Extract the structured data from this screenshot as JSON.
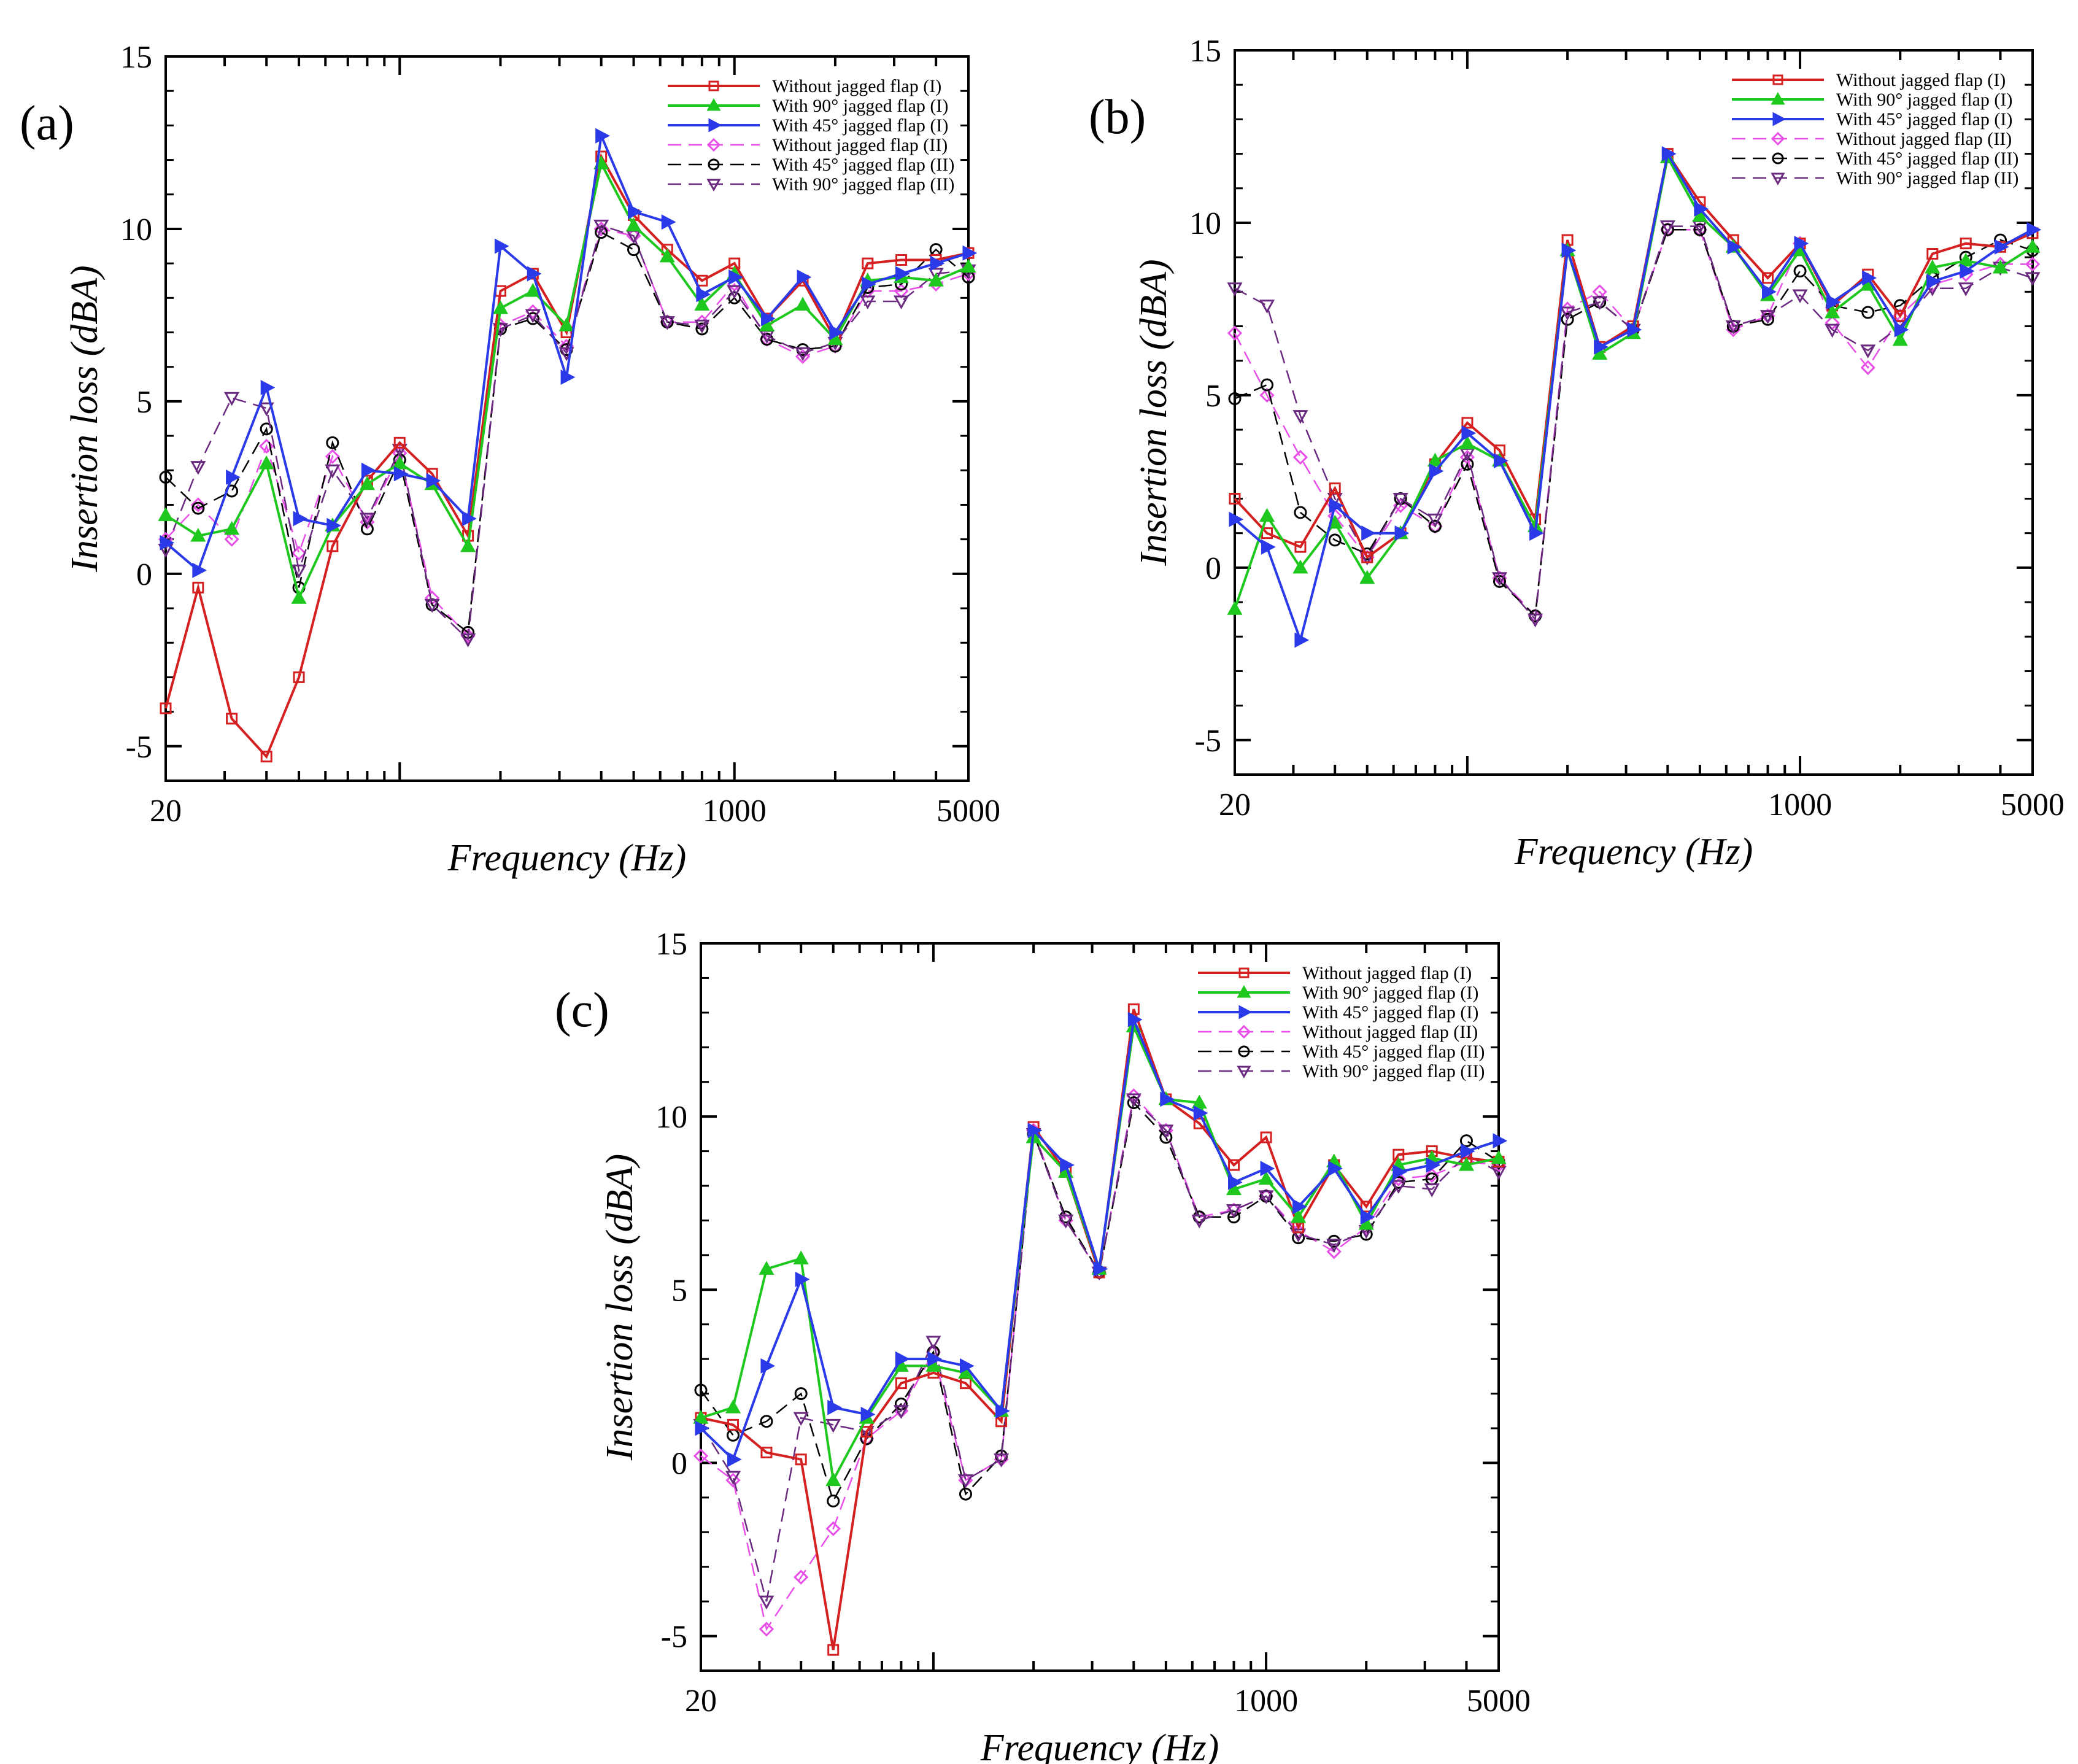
{
  "chart_data": [
    {
      "type": "line",
      "panel_label": "(a)",
      "xlabel": "Frequency (Hz)",
      "ylabel": "Insertion loss (dBA)",
      "xscale": "log",
      "xlim": [
        20,
        5000
      ],
      "ylim": [
        -6,
        15
      ],
      "yticks": [
        "-5",
        "0",
        "5",
        "10",
        "15"
      ],
      "xtick_labels": [
        "20",
        "1000",
        "5000"
      ],
      "legend_position": "top-right",
      "x": [
        20,
        25,
        31.5,
        40,
        50,
        63,
        80,
        100,
        125,
        160,
        200,
        250,
        315,
        400,
        500,
        630,
        800,
        1000,
        1250,
        1600,
        2000,
        2500,
        3150,
        4000,
        5000
      ],
      "series": [
        {
          "name": "Without jagged flap (I)",
          "color": "#d42020",
          "dash": "solid",
          "marker": "square",
          "values": [
            -3.9,
            -0.4,
            -4.2,
            -5.3,
            -3.0,
            0.8,
            2.7,
            3.8,
            2.9,
            1.1,
            8.2,
            8.7,
            7.0,
            12.1,
            10.4,
            9.4,
            8.5,
            9.0,
            7.4,
            8.5,
            6.8,
            9.0,
            9.1,
            9.1,
            9.3
          ]
        },
        {
          "name": "With 90° jagged flap (I)",
          "color": "#1ec81e",
          "dash": "solid",
          "marker": "triangle-up",
          "values": [
            1.7,
            1.1,
            1.3,
            3.2,
            -0.7,
            1.4,
            2.6,
            3.2,
            2.6,
            0.8,
            7.7,
            8.2,
            7.2,
            11.9,
            10.1,
            9.2,
            7.8,
            8.7,
            7.2,
            7.8,
            6.8,
            8.5,
            8.6,
            8.5,
            8.9
          ]
        },
        {
          "name": "With 45° jagged flap (I)",
          "color": "#2a3ae8",
          "dash": "solid",
          "marker": "triangle-right",
          "values": [
            0.9,
            0.1,
            2.8,
            5.4,
            1.6,
            1.4,
            3.0,
            2.9,
            2.7,
            1.6,
            9.5,
            8.7,
            5.7,
            12.7,
            10.5,
            10.2,
            8.1,
            8.6,
            7.4,
            8.6,
            7.0,
            8.4,
            8.7,
            9.0,
            9.3
          ]
        },
        {
          "name": "Without jagged flap (II)",
          "color": "#e84ee8",
          "dash": "dashed",
          "marker": "diamond",
          "values": [
            1.0,
            2.0,
            1.0,
            3.7,
            0.6,
            3.4,
            1.5,
            3.5,
            -0.7,
            -1.8,
            7.2,
            7.6,
            6.6,
            10.0,
            9.8,
            7.3,
            7.3,
            8.4,
            6.8,
            6.3,
            6.6,
            8.2,
            8.2,
            8.4,
            8.7
          ]
        },
        {
          "name": "With 45° jagged flap (II)",
          "color": "#000000",
          "dash": "dashed",
          "marker": "circle",
          "values": [
            2.8,
            1.9,
            2.4,
            4.2,
            -0.4,
            3.8,
            1.3,
            3.3,
            -0.9,
            -1.7,
            7.1,
            7.4,
            6.5,
            9.9,
            9.4,
            7.3,
            7.1,
            8.0,
            6.8,
            6.5,
            6.6,
            8.3,
            8.4,
            9.4,
            8.6
          ]
        },
        {
          "name": "With 90° jagged flap (II)",
          "color": "#6a2a80",
          "dash": "dashed",
          "marker": "triangle-down",
          "values": [
            0.7,
            3.1,
            5.1,
            4.8,
            0.1,
            3.0,
            1.6,
            3.6,
            -0.9,
            -1.9,
            7.1,
            7.5,
            6.4,
            10.1,
            9.8,
            7.3,
            7.2,
            8.2,
            6.9,
            6.4,
            6.7,
            7.9,
            7.9,
            8.7,
            8.8
          ]
        }
      ]
    },
    {
      "type": "line",
      "panel_label": "(b)",
      "xlabel": "Frequency (Hz)",
      "ylabel": "Insertion loss (dBA)",
      "xscale": "log",
      "xlim": [
        20,
        5000
      ],
      "ylim": [
        -6,
        15
      ],
      "yticks": [
        "-5",
        "0",
        "5",
        "10",
        "15"
      ],
      "xtick_labels": [
        "20",
        "1000",
        "5000"
      ],
      "legend_position": "top-right",
      "x": [
        20,
        25,
        31.5,
        40,
        50,
        63,
        80,
        100,
        125,
        160,
        200,
        250,
        315,
        400,
        500,
        630,
        800,
        1000,
        1250,
        1600,
        2000,
        2500,
        3150,
        4000,
        5000
      ],
      "series": [
        {
          "name": "Without jagged flap (I)",
          "color": "#d42020",
          "dash": "solid",
          "marker": "square",
          "values": [
            2.0,
            1.0,
            0.6,
            2.3,
            0.3,
            1.0,
            3.0,
            4.2,
            3.4,
            1.4,
            9.5,
            6.4,
            7.0,
            12.0,
            10.6,
            9.5,
            8.4,
            9.4,
            7.6,
            8.5,
            7.3,
            9.1,
            9.4,
            9.3,
            9.7
          ]
        },
        {
          "name": "With 90° jagged flap (I)",
          "color": "#1ec81e",
          "dash": "solid",
          "marker": "triangle-up",
          "values": [
            -1.2,
            1.5,
            0.0,
            1.3,
            -0.3,
            1.0,
            3.1,
            3.6,
            3.1,
            1.2,
            9.2,
            6.2,
            6.8,
            11.9,
            10.2,
            9.3,
            7.9,
            9.2,
            7.4,
            8.2,
            6.6,
            8.7,
            8.9,
            8.7,
            9.3
          ]
        },
        {
          "name": "With 45° jagged flap (I)",
          "color": "#2a3ae8",
          "dash": "solid",
          "marker": "triangle-right",
          "values": [
            1.4,
            0.6,
            -2.1,
            1.8,
            1.0,
            1.0,
            2.8,
            3.9,
            3.1,
            1.0,
            9.2,
            6.4,
            6.9,
            12.0,
            10.4,
            9.3,
            8.0,
            9.4,
            7.7,
            8.4,
            6.9,
            8.3,
            8.6,
            9.3,
            9.8
          ]
        },
        {
          "name": "Without jagged flap (II)",
          "color": "#e84ee8",
          "dash": "dashed",
          "marker": "diamond",
          "values": [
            6.8,
            5.0,
            3.2,
            1.5,
            0.3,
            1.8,
            1.2,
            3.2,
            -0.3,
            -1.4,
            7.5,
            8.0,
            6.9,
            9.8,
            9.8,
            6.9,
            7.3,
            9.4,
            7.1,
            5.8,
            7.3,
            8.2,
            8.5,
            8.8,
            8.8
          ]
        },
        {
          "name": "With 45° jagged flap (II)",
          "color": "#000000",
          "dash": "dashed",
          "marker": "circle",
          "values": [
            4.9,
            5.3,
            1.6,
            0.8,
            0.4,
            2.0,
            1.2,
            3.0,
            -0.4,
            -1.4,
            7.2,
            7.7,
            6.9,
            9.8,
            9.8,
            7.0,
            7.2,
            8.6,
            7.6,
            7.4,
            7.6,
            8.4,
            9.0,
            9.5,
            9.2
          ]
        },
        {
          "name": "With 90° jagged flap (II)",
          "color": "#6a2a80",
          "dash": "dashed",
          "marker": "triangle-down",
          "values": [
            8.1,
            7.6,
            4.4,
            2.0,
            0.3,
            2.0,
            1.4,
            3.3,
            -0.3,
            -1.5,
            7.4,
            7.7,
            6.9,
            9.9,
            9.9,
            7.0,
            7.3,
            7.9,
            6.9,
            6.3,
            7.0,
            8.1,
            8.1,
            8.7,
            8.4
          ]
        }
      ]
    },
    {
      "type": "line",
      "panel_label": "(c)",
      "xlabel": "Frequency (Hz)",
      "ylabel": "Insertion loss (dBA)",
      "xscale": "log",
      "xlim": [
        20,
        5000
      ],
      "ylim": [
        -6,
        15
      ],
      "yticks": [
        "-5",
        "0",
        "5",
        "10",
        "15"
      ],
      "xtick_labels": [
        "20",
        "1000",
        "5000"
      ],
      "legend_position": "top-right",
      "x": [
        20,
        25,
        31.5,
        40,
        50,
        63,
        80,
        100,
        125,
        160,
        200,
        250,
        315,
        400,
        500,
        630,
        800,
        1000,
        1250,
        1600,
        2000,
        2500,
        3150,
        4000,
        5000
      ],
      "series": [
        {
          "name": "Without jagged flap (I)",
          "color": "#d42020",
          "dash": "solid",
          "marker": "square",
          "values": [
            1.3,
            1.1,
            0.3,
            0.1,
            -5.4,
            0.9,
            2.3,
            2.6,
            2.3,
            1.2,
            9.7,
            8.4,
            5.5,
            13.1,
            10.5,
            9.8,
            8.6,
            9.4,
            6.8,
            8.6,
            7.4,
            8.9,
            9.0,
            8.8,
            8.7
          ]
        },
        {
          "name": "With 90° jagged flap (I)",
          "color": "#1ec81e",
          "dash": "solid",
          "marker": "triangle-up",
          "values": [
            1.3,
            1.6,
            5.6,
            5.9,
            -0.5,
            1.3,
            2.8,
            2.8,
            2.6,
            1.5,
            9.4,
            8.4,
            5.6,
            12.6,
            10.5,
            10.4,
            7.9,
            8.2,
            7.1,
            8.7,
            6.9,
            8.6,
            8.8,
            8.6,
            8.8
          ]
        },
        {
          "name": "With 45° jagged flap (I)",
          "color": "#2a3ae8",
          "dash": "solid",
          "marker": "triangle-right",
          "values": [
            1.0,
            0.1,
            2.8,
            5.3,
            1.6,
            1.4,
            3.0,
            3.0,
            2.8,
            1.5,
            9.6,
            8.6,
            5.6,
            12.8,
            10.5,
            10.1,
            8.1,
            8.5,
            7.4,
            8.5,
            7.1,
            8.4,
            8.6,
            9.0,
            9.3
          ]
        },
        {
          "name": "Without jagged flap (II)",
          "color": "#e84ee8",
          "dash": "dashed",
          "marker": "diamond",
          "values": [
            0.2,
            -0.5,
            -4.8,
            -3.3,
            -1.9,
            0.7,
            1.5,
            3.2,
            -0.5,
            0.1,
            9.6,
            7.0,
            5.5,
            10.6,
            9.6,
            7.1,
            7.3,
            7.7,
            6.7,
            6.1,
            6.8,
            8.2,
            8.3,
            8.7,
            8.6
          ]
        },
        {
          "name": "With 45° jagged flap (II)",
          "color": "#000000",
          "dash": "dashed",
          "marker": "circle",
          "values": [
            2.1,
            0.8,
            1.2,
            2.0,
            -1.1,
            0.7,
            1.7,
            3.2,
            -0.9,
            0.2,
            9.5,
            7.1,
            5.5,
            10.4,
            9.4,
            7.1,
            7.1,
            7.7,
            6.5,
            6.4,
            6.6,
            8.1,
            8.2,
            9.3,
            8.7
          ]
        },
        {
          "name": "With 90° jagged flap (II)",
          "color": "#6a2a80",
          "dash": "dashed",
          "marker": "triangle-down",
          "values": [
            1.1,
            -0.4,
            -4.0,
            1.3,
            1.1,
            0.9,
            1.5,
            3.5,
            -0.5,
            0.1,
            9.5,
            7.0,
            5.5,
            10.5,
            9.6,
            7.0,
            7.3,
            7.7,
            6.6,
            6.3,
            6.7,
            8.0,
            7.9,
            8.9,
            8.4
          ]
        }
      ]
    }
  ]
}
